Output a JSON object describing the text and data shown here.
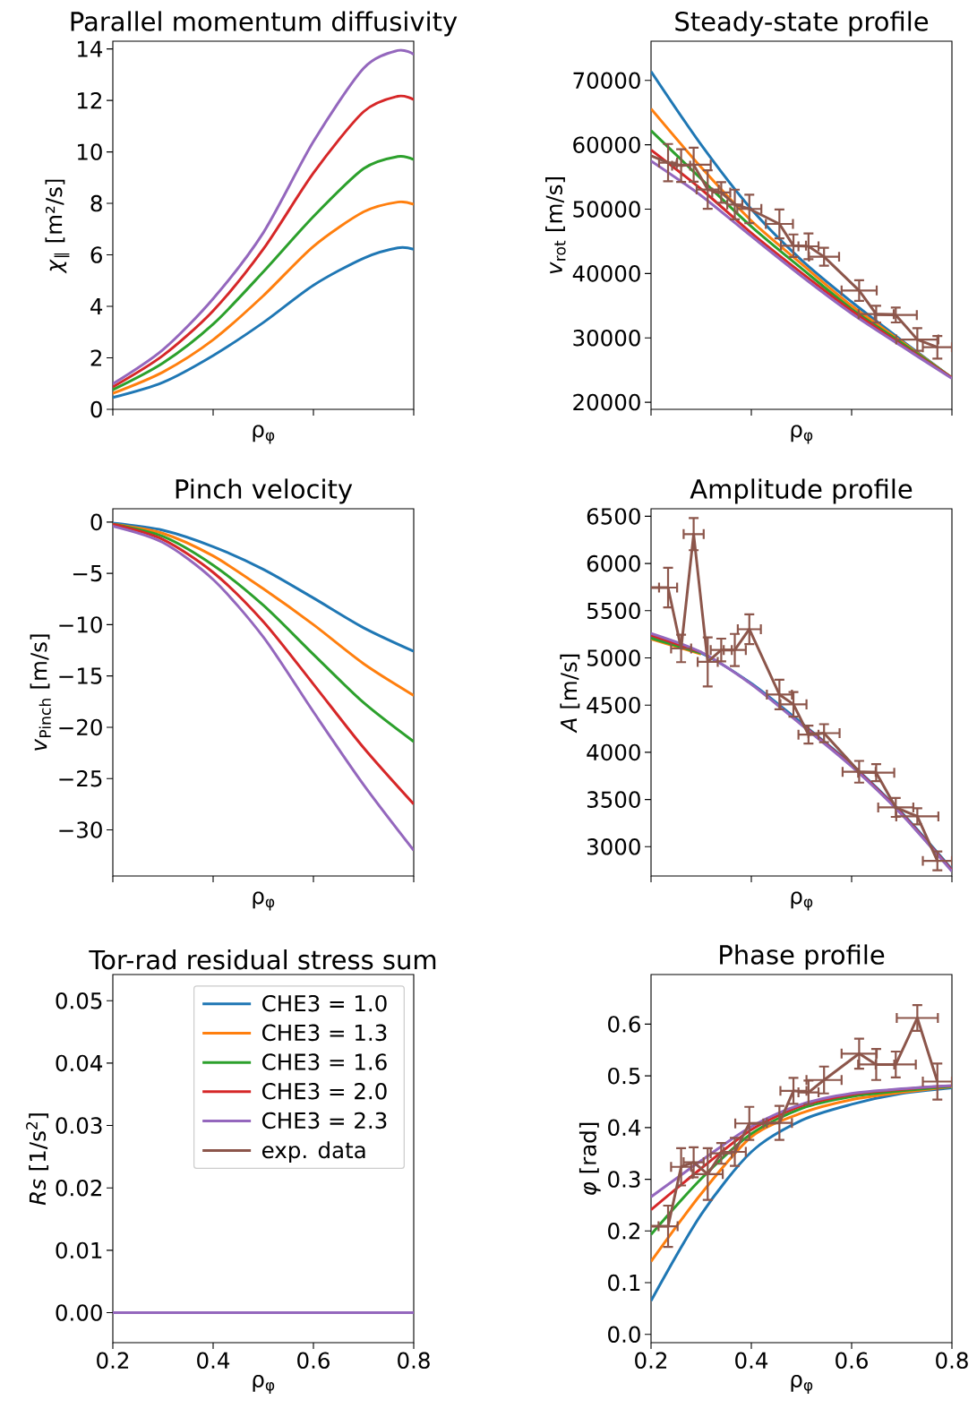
{
  "chart_data": [
    {
      "type": "line",
      "title": "Parallel momentum diffusivity",
      "xlabel": "ρ$_{φ}$",
      "ylabel": "*χ*$_{∥}$ [m²/s]",
      "xlim": [
        0.2,
        0.8
      ],
      "xticks": [
        0.2,
        0.4,
        0.6,
        0.8
      ],
      "ylim": [
        0,
        14.3
      ],
      "yticks": [
        0,
        2,
        4,
        6,
        8,
        10,
        12,
        14
      ],
      "tick_labels": "y",
      "x": [
        0.2,
        0.3,
        0.4,
        0.5,
        0.6,
        0.7,
        0.768,
        0.8
      ],
      "series": [
        {
          "color": "#1f77b4",
          "values": [
            0.46,
            1.05,
            2.09,
            3.37,
            4.82,
            5.87,
            6.27,
            6.22
          ]
        },
        {
          "color": "#ff7f0e",
          "values": [
            0.62,
            1.45,
            2.7,
            4.41,
            6.33,
            7.67,
            8.05,
            7.96
          ]
        },
        {
          "color": "#2ca02c",
          "values": [
            0.76,
            1.8,
            3.31,
            5.34,
            7.49,
            9.35,
            9.82,
            9.7
          ]
        },
        {
          "color": "#d62728",
          "values": [
            0.87,
            2.09,
            3.83,
            6.22,
            9.18,
            11.56,
            12.16,
            12.03
          ]
        },
        {
          "color": "#9467bd",
          "values": [
            0.99,
            2.32,
            4.3,
            6.86,
            10.4,
            13.25,
            13.94,
            13.79
          ]
        }
      ]
    },
    {
      "type": "line",
      "title": "Steady-state profile",
      "xlabel": "ρ$_{φ}$",
      "ylabel": "*v*$_{rot}$ [m/s]",
      "xlim": [
        0.2,
        0.8
      ],
      "xticks": [
        0.2,
        0.4,
        0.6,
        0.8
      ],
      "ylim": [
        18900,
        76100
      ],
      "yticks": [
        20000,
        30000,
        40000,
        50000,
        60000,
        70000
      ],
      "tick_labels": "y",
      "x": [
        0.2,
        0.3,
        0.4,
        0.5,
        0.6,
        0.7,
        0.8
      ],
      "series": [
        {
          "color": "#1f77b4",
          "values": [
            71400,
            60000,
            50000,
            42100,
            35600,
            29600,
            23800
          ]
        },
        {
          "color": "#ff7f0e",
          "values": [
            65600,
            56500,
            48200,
            41500,
            35000,
            29400,
            23800
          ]
        },
        {
          "color": "#2ca02c",
          "values": [
            62200,
            54700,
            47300,
            40800,
            34500,
            29200,
            23800
          ]
        },
        {
          "color": "#d62728",
          "values": [
            59200,
            53100,
            46300,
            40100,
            34200,
            28900,
            23800
          ]
        },
        {
          "color": "#9467bd",
          "values": [
            57500,
            52100,
            45800,
            39600,
            33800,
            28700,
            23700
          ]
        },
        {
          "color": "#8c564b",
          "x": [
            0.2,
            0.234,
            0.26,
            0.285,
            0.313,
            0.34,
            0.367,
            0.396,
            0.456,
            0.484,
            0.514,
            0.545,
            0.615,
            0.649,
            0.688,
            0.731,
            0.771
          ],
          "values": [
            58300,
            57230,
            56770,
            56910,
            53050,
            52590,
            50730,
            50040,
            47710,
            44320,
            44230,
            42610,
            37360,
            33690,
            33550,
            29750,
            28540
          ],
          "errors": [
            null,
            2900,
            2550,
            2650,
            3000,
            1600,
            2300,
            2200,
            2250,
            1750,
            2000,
            1400,
            1600,
            1300,
            1150,
            1750,
            1750
          ],
          "xerrors": [
            null,
            0.018,
            0.018,
            0.034,
            0.022,
            0.018,
            0.015,
            0.024,
            0.027,
            0.025,
            0.02,
            0.03,
            0.035,
            0.035,
            0.042,
            0.042,
            0.029
          ]
        }
      ]
    },
    {
      "type": "line",
      "title": "Pinch velocity",
      "xlabel": "ρ$_{φ}$",
      "ylabel": "*v*$_{Pinch}$ [m/s]",
      "xlim": [
        0.2,
        0.8
      ],
      "xticks": [
        0.2,
        0.4,
        0.6,
        0.8
      ],
      "ylim": [
        -34.5,
        1.3
      ],
      "yticks": [
        {
          "value": -30,
          "label": "−30"
        },
        {
          "value": -25,
          "label": "−25"
        },
        {
          "value": -20,
          "label": "−20"
        },
        {
          "value": -15,
          "label": "−15"
        },
        {
          "value": -10,
          "label": "−10"
        },
        {
          "value": -5,
          "label": "−5"
        },
        0
      ],
      "tick_labels": "y",
      "x": [
        0.2,
        0.3,
        0.4,
        0.5,
        0.6,
        0.7,
        0.8
      ],
      "series": [
        {
          "color": "#1f77b4",
          "values": [
            -0.1,
            -0.8,
            -2.4,
            -4.6,
            -7.4,
            -10.3,
            -12.6
          ]
        },
        {
          "color": "#ff7f0e",
          "values": [
            -0.2,
            -1.1,
            -3.3,
            -6.5,
            -10.0,
            -13.8,
            -16.9
          ]
        },
        {
          "color": "#2ca02c",
          "values": [
            -0.2,
            -1.4,
            -4.2,
            -8.1,
            -12.9,
            -17.6,
            -21.4
          ]
        },
        {
          "color": "#d62728",
          "values": [
            -0.2,
            -1.7,
            -4.9,
            -9.7,
            -15.8,
            -22.0,
            -27.5
          ]
        },
        {
          "color": "#9467bd",
          "values": [
            -0.4,
            -2.0,
            -5.6,
            -11.2,
            -18.5,
            -25.6,
            -32.0
          ]
        }
      ]
    },
    {
      "type": "line",
      "title": "Amplitude profile",
      "xlabel": "ρ$_{φ}$",
      "ylabel": "*A* [m/s]",
      "xlim": [
        0.2,
        0.8
      ],
      "xticks": [
        0.2,
        0.4,
        0.6,
        0.8
      ],
      "ylim": [
        2690,
        6580
      ],
      "yticks": [
        3000,
        3500,
        4000,
        4500,
        5000,
        5500,
        6000,
        6500
      ],
      "tick_labels": "y",
      "x": [
        0.2,
        0.3,
        0.4,
        0.5,
        0.6,
        0.7,
        0.8
      ],
      "series": [
        {
          "color": "#1f77b4",
          "values": [
            5220,
            5050,
            4730,
            4310,
            3870,
            3360,
            2760
          ]
        },
        {
          "color": "#ff7f0e",
          "values": [
            5200,
            5040,
            null,
            null,
            null,
            null,
            null
          ]
        },
        {
          "color": "#2ca02c",
          "values": [
            5210,
            5050,
            null,
            null,
            null,
            null,
            null
          ]
        },
        {
          "color": "#d62728",
          "values": [
            5240,
            5060,
            null,
            4300,
            3860,
            3350,
            2750
          ]
        },
        {
          "color": "#9467bd",
          "values": [
            5260,
            5060,
            4720,
            4290,
            3850,
            3340,
            2740
          ]
        },
        {
          "color": "#8c564b",
          "x": [
            0.2,
            0.234,
            0.26,
            0.285,
            0.313,
            0.34,
            0.367,
            0.396,
            0.456,
            0.484,
            0.514,
            0.545,
            0.615,
            0.649,
            0.688,
            0.731,
            0.771
          ],
          "values": [
            5745,
            5745,
            5100,
            6311,
            4958,
            5084,
            5084,
            5304,
            4612,
            4508,
            4187,
            4203,
            3794,
            3784,
            3416,
            3322,
            2850
          ],
          "errors": [
            null,
            210,
            145,
            170,
            260,
            120,
            170,
            157,
            157,
            130,
            95,
            95,
            115,
            90,
            100,
            85,
            100
          ],
          "xerrors": [
            null,
            0.018,
            0.02,
            0.02,
            0.02,
            0.021,
            0.022,
            0.023,
            0.025,
            0.026,
            0.02,
            0.031,
            0.033,
            0.036,
            0.035,
            0.042,
            0.029
          ]
        }
      ]
    },
    {
      "type": "line",
      "title": "Tor-rad residual stress sum",
      "xlabel": "ρ$_{φ}$",
      "ylabel": "*Rs* [1/s$^{2}$]",
      "xlim": [
        0.2,
        0.8
      ],
      "xticks": [
        0.2,
        0.4,
        0.6,
        0.8
      ],
      "ylim": [
        -0.0048,
        0.0542
      ],
      "yticks": [
        {
          "value": 0,
          "label": "0.00"
        },
        0.01,
        0.02,
        0.03,
        0.04,
        0.05
      ],
      "legend": "top right",
      "x": [
        0.2,
        0.8
      ],
      "series": [
        {
          "name": "CHE3 = 1.0",
          "color": "#1f77b4",
          "values": [
            null,
            null
          ]
        },
        {
          "name": "CHE3 = 1.3",
          "color": "#ff7f0e",
          "values": [
            null,
            null
          ]
        },
        {
          "name": "CHE3 = 1.6",
          "color": "#2ca02c",
          "values": [
            null,
            null
          ]
        },
        {
          "name": "CHE3 = 2.0",
          "color": "#d62728",
          "values": [
            null,
            null
          ]
        },
        {
          "name": "CHE3 = 2.3",
          "color": "#9467bd",
          "values": [
            0,
            0
          ]
        },
        {
          "name": "exp. data",
          "color": "#8c564b",
          "values": [
            null,
            null
          ]
        }
      ]
    },
    {
      "type": "line",
      "title": "Phase profile",
      "xlabel": "ρ$_{φ}$",
      "ylabel": "*φ* [rad]",
      "xlim": [
        0.2,
        0.8
      ],
      "xticks": [
        0.2,
        0.4,
        0.6,
        0.8
      ],
      "ylim": [
        -0.016,
        0.696
      ],
      "yticks": [
        {
          "value": 0,
          "label": "0.0"
        },
        0.1,
        0.2,
        0.3,
        0.4,
        0.5,
        0.6
      ],
      "x": [
        0.2,
        0.3,
        0.4,
        0.5,
        0.6,
        0.7,
        0.8
      ],
      "series": [
        {
          "color": "#1f77b4",
          "values": [
            0.065,
            0.232,
            0.353,
            0.414,
            0.445,
            0.466,
            0.477
          ]
        },
        {
          "color": "#ff7f0e",
          "values": [
            0.141,
            0.272,
            0.382,
            0.428,
            0.454,
            0.468,
            0.479
          ]
        },
        {
          "color": "#2ca02c",
          "values": [
            0.193,
            0.301,
            0.388,
            0.437,
            0.46,
            0.471,
            0.48
          ]
        },
        {
          "color": "#d62728",
          "values": [
            0.241,
            0.321,
            0.396,
            0.442,
            0.464,
            0.474,
            0.481
          ]
        },
        {
          "color": "#9467bd",
          "values": [
            0.266,
            0.336,
            0.402,
            0.445,
            0.466,
            0.475,
            0.481
          ]
        },
        {
          "color": "#8c564b",
          "x": [
            0.2,
            0.234,
            0.26,
            0.285,
            0.313,
            0.34,
            0.367,
            0.396,
            0.456,
            0.484,
            0.514,
            0.545,
            0.615,
            0.649,
            0.688,
            0.731,
            0.771
          ],
          "values": [
            0.209,
            0.209,
            0.324,
            0.333,
            0.31,
            0.35,
            0.353,
            0.408,
            0.409,
            0.471,
            0.468,
            0.492,
            0.543,
            0.522,
            0.522,
            0.612,
            0.489
          ],
          "errors": [
            null,
            0.04,
            0.036,
            0.029,
            0.05,
            0.02,
            0.027,
            0.032,
            0.033,
            0.025,
            0.023,
            0.026,
            0.029,
            0.03,
            0.025,
            0.025,
            0.035
          ],
          "xerrors": [
            null,
            0.019,
            0.02,
            0.02,
            0.03,
            0.021,
            0.022,
            0.028,
            0.025,
            0.026,
            0.02,
            0.035,
            0.035,
            0.036,
            0.04,
            0.041,
            0.029
          ]
        }
      ]
    }
  ]
}
